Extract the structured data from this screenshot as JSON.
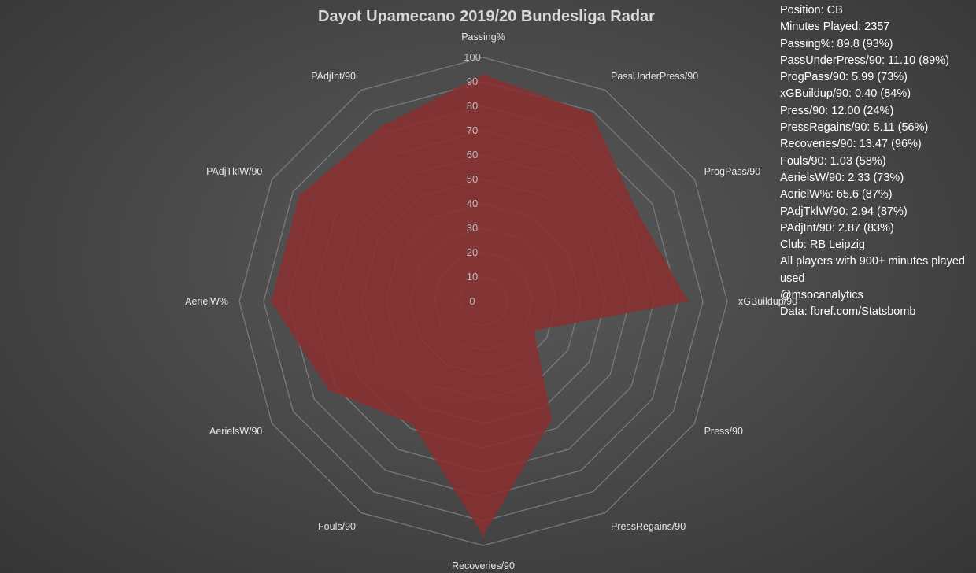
{
  "chart_data": {
    "type": "radar",
    "title": "Dayot Upamecano 2019/20 Bundesliga Radar",
    "categories": [
      "Passing%",
      "PassUnderPress/90",
      "ProgPass/90",
      "xGBuildup/90",
      "Press/90",
      "PressRegains/90",
      "Recoveries/90",
      "Fouls/90",
      "AerielsW/90",
      "AerielW%",
      "PAdjTklW/90",
      "PAdjInt/90"
    ],
    "values": [
      93,
      89,
      73,
      84,
      24,
      56,
      96,
      58,
      73,
      87,
      87,
      83
    ],
    "rlim": [
      0,
      100
    ],
    "ticks": [
      0,
      10,
      20,
      30,
      40,
      50,
      60,
      70,
      80,
      90,
      100
    ],
    "grid": true,
    "colors": {
      "fill": "#8b2f2f",
      "fill_opacity": 0.85,
      "grid": "#7a7a7a",
      "tick_label": "#bfbfbf",
      "axis_label": "#e6e6e6"
    }
  },
  "side_panel": {
    "lines": [
      "Position: CB",
      "Minutes Played: 2357",
      "Passing%: 89.8 (93%)",
      "PassUnderPress/90: 11.10 (89%)",
      "ProgPass/90: 5.99 (73%)",
      "xGBuildup/90: 0.40 (84%)",
      "Press/90: 12.00 (24%)",
      "PressRegains/90: 5.11 (56%)",
      "Recoveries/90: 13.47 (96%)",
      "Fouls/90: 1.03 (58%)",
      "AerielsW/90: 2.33 (73%)",
      "AerielW%: 65.6 (87%)",
      "PAdjTklW/90: 2.94 (87%)",
      "PAdjInt/90: 2.87 (83%)",
      "Club: RB Leipzig"
    ],
    "note": "All players with 900+ minutes played used",
    "handle": "@msocanalytics",
    "source": "Data: fbref.com/Statsbomb"
  }
}
